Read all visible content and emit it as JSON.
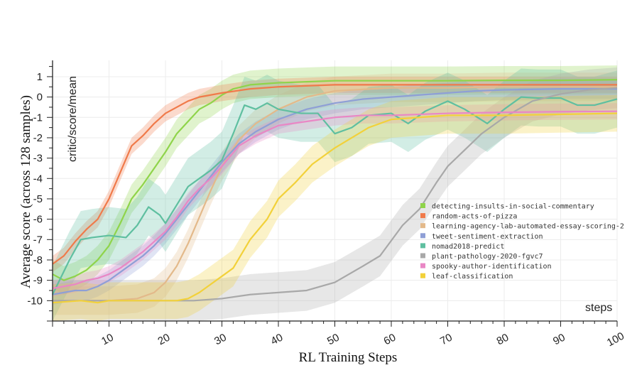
{
  "chart_data": {
    "type": "line",
    "xlabel": "RL Training Steps",
    "ylabel": "Average score (across 128 samples)",
    "inner_ylabel": "critic/score/mean",
    "inner_xlabel": "steps",
    "xlim": [
      0,
      100
    ],
    "ylim": [
      -11,
      1.8
    ],
    "x_ticks": [
      10,
      20,
      30,
      40,
      50,
      60,
      70,
      80,
      90,
      100
    ],
    "y_ticks": [
      1,
      0,
      -1,
      -2,
      -3,
      -4,
      -5,
      -6,
      -7,
      -8,
      -9,
      -10
    ],
    "grid": true,
    "legend_position": "lower-right",
    "series": [
      {
        "name": "detecting-insults-in-social-commentary",
        "color": "#8fd44a",
        "x": [
          0,
          2,
          4,
          6,
          8,
          10,
          12,
          14,
          16,
          18,
          20,
          22,
          24,
          26,
          28,
          30,
          32,
          35,
          40,
          45,
          50,
          60,
          70,
          80,
          90,
          100
        ],
        "values": [
          -8.7,
          -9.0,
          -8.8,
          -8.5,
          -8.0,
          -7.3,
          -6.2,
          -5.0,
          -4.3,
          -3.5,
          -2.7,
          -1.8,
          -1.2,
          -0.6,
          -0.3,
          0.1,
          0.4,
          0.6,
          0.7,
          0.75,
          0.8,
          0.8,
          0.8,
          0.82,
          0.82,
          0.85
        ],
        "band": 0.7
      },
      {
        "name": "random-acts-of-pizza",
        "color": "#f07a4a",
        "x": [
          0,
          2,
          4,
          6,
          8,
          10,
          12,
          14,
          16,
          18,
          20,
          22,
          24,
          26,
          28,
          30,
          35,
          40,
          50,
          60,
          70,
          80,
          90,
          100
        ],
        "values": [
          -8.2,
          -7.8,
          -7.1,
          -6.5,
          -6.0,
          -5.0,
          -3.7,
          -2.4,
          -1.9,
          -1.3,
          -0.8,
          -0.5,
          -0.2,
          0.0,
          0.1,
          0.2,
          0.4,
          0.5,
          0.6,
          0.6,
          0.6,
          0.6,
          0.6,
          0.6
        ],
        "band": 0.4
      },
      {
        "name": "learning-agency-lab-automated-essay-scoring-2",
        "color": "#e3b98a",
        "x": [
          0,
          5,
          10,
          15,
          18,
          20,
          22,
          24,
          26,
          28,
          30,
          33,
          36,
          40,
          45,
          50,
          60,
          70,
          80,
          90,
          100
        ],
        "values": [
          -10.0,
          -10.0,
          -10.0,
          -9.9,
          -9.6,
          -9.1,
          -8.3,
          -7.2,
          -5.9,
          -4.6,
          -3.4,
          -2.1,
          -1.3,
          -0.6,
          0.0,
          0.3,
          0.45,
          0.45,
          0.5,
          0.5,
          0.5
        ],
        "band": 0.7
      },
      {
        "name": "tweet-sentiment-extraction",
        "color": "#8e9fd6",
        "x": [
          0,
          2,
          4,
          6,
          8,
          10,
          12,
          14,
          16,
          18,
          20,
          22,
          24,
          26,
          28,
          30,
          33,
          36,
          40,
          45,
          50,
          55,
          60,
          65,
          70,
          75,
          80,
          90,
          100
        ],
        "values": [
          -9.7,
          -9.6,
          -9.5,
          -9.5,
          -9.3,
          -9.0,
          -8.6,
          -8.2,
          -7.8,
          -7.3,
          -6.7,
          -6.0,
          -5.3,
          -4.6,
          -3.9,
          -3.2,
          -2.3,
          -1.7,
          -1.1,
          -0.6,
          -0.3,
          -0.1,
          0.0,
          0.1,
          0.2,
          0.3,
          0.35,
          0.4,
          0.4
        ],
        "band": 0.5
      },
      {
        "name": "nomad2018-predict",
        "color": "#5fbfa0",
        "x": [
          0,
          3,
          5,
          7,
          10,
          13,
          15,
          17,
          19,
          20,
          22,
          24,
          26,
          28,
          30,
          32,
          34,
          36,
          38,
          40,
          42,
          44,
          47,
          50,
          53,
          56,
          60,
          63,
          66,
          70,
          73,
          77,
          80,
          83,
          86,
          90,
          93,
          96,
          100
        ],
        "values": [
          -9.7,
          -8.0,
          -7.0,
          -6.9,
          -6.8,
          -6.9,
          -6.3,
          -5.4,
          -5.8,
          -6.2,
          -5.3,
          -4.4,
          -4.0,
          -3.6,
          -3.1,
          -1.8,
          -0.4,
          -0.6,
          -0.3,
          -0.6,
          -0.7,
          -0.8,
          -0.8,
          -1.8,
          -1.5,
          -0.9,
          -0.8,
          -1.3,
          -0.7,
          -0.2,
          -0.6,
          -1.3,
          -0.6,
          0.0,
          -0.05,
          -0.05,
          -0.4,
          -0.4,
          -0.1
        ],
        "band": 1.4
      },
      {
        "name": "plant-pathology-2020-fgvc7",
        "color": "#a8a8a8",
        "x": [
          0,
          10,
          20,
          25,
          30,
          35,
          40,
          45,
          50,
          55,
          58,
          62,
          65,
          68,
          70,
          73,
          76,
          80,
          85,
          90,
          95,
          100
        ],
        "values": [
          -10.0,
          -10.0,
          -10.0,
          -10.0,
          -9.9,
          -9.7,
          -9.6,
          -9.5,
          -9.1,
          -8.3,
          -7.8,
          -6.3,
          -5.5,
          -4.2,
          -3.4,
          -2.6,
          -1.8,
          -1.0,
          -0.2,
          0.15,
          0.35,
          0.45
        ],
        "band": 1.0
      },
      {
        "name": "spooky-author-identification",
        "color": "#e987c5",
        "x": [
          0,
          2,
          4,
          6,
          8,
          10,
          12,
          14,
          16,
          18,
          20,
          22,
          24,
          26,
          28,
          30,
          33,
          36,
          40,
          45,
          50,
          55,
          60,
          70,
          80,
          90,
          100
        ],
        "values": [
          -9.4,
          -9.3,
          -9.2,
          -9.0,
          -8.9,
          -8.7,
          -8.4,
          -8.0,
          -7.6,
          -7.1,
          -6.6,
          -5.9,
          -5.1,
          -4.5,
          -4.0,
          -3.4,
          -2.4,
          -1.9,
          -1.4,
          -1.2,
          -1.0,
          -0.9,
          -0.9,
          -0.8,
          -0.75,
          -0.72,
          -0.7
        ],
        "band": 0.4
      },
      {
        "name": "leaf-classification",
        "color": "#f2d13a",
        "x": [
          0,
          5,
          8,
          10,
          15,
          20,
          22,
          24,
          26,
          28,
          30,
          32,
          35,
          38,
          40,
          43,
          46,
          50,
          53,
          56,
          60,
          65,
          70,
          80,
          90,
          100
        ],
        "values": [
          -10.1,
          -10.0,
          -10.1,
          -10.0,
          -10.0,
          -10.0,
          -10.0,
          -9.9,
          -9.6,
          -9.2,
          -8.8,
          -8.4,
          -7.0,
          -6.0,
          -5.0,
          -4.2,
          -3.3,
          -2.5,
          -2.0,
          -1.5,
          -1.1,
          -1.0,
          -0.9,
          -0.9,
          -0.85,
          -0.8
        ],
        "band": 0.9
      }
    ]
  }
}
